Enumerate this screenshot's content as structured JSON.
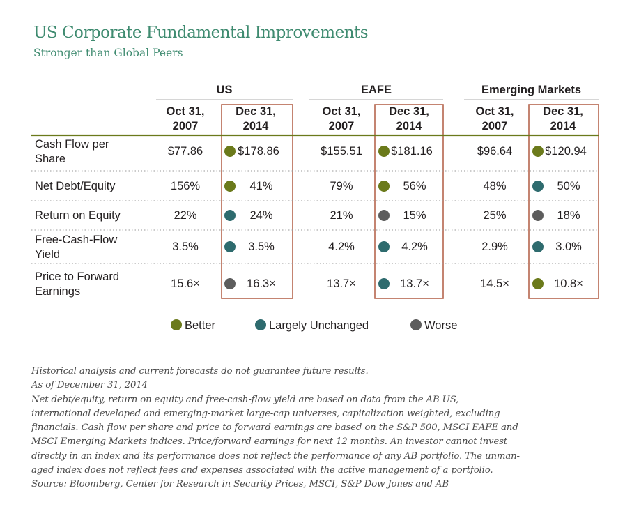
{
  "title": "US Corporate Fundamental Improvements",
  "subtitle": "Stronger than Global Peers",
  "colors": {
    "better": "#6b7a1b",
    "largely_unchanged": "#2e6b6e",
    "worse": "#5d5d5d",
    "title": "#3f8b70",
    "highlight_box": "#b5654e",
    "header_rule": "#6b7a1b"
  },
  "chart_data": {
    "type": "table",
    "groups": [
      {
        "name": "US",
        "columns": [
          "Oct 31, 2007",
          "Dec 31, 2014"
        ]
      },
      {
        "name": "EAFE",
        "columns": [
          "Oct 31, 2007",
          "Dec 31, 2014"
        ]
      },
      {
        "name": "Emerging Markets",
        "columns": [
          "Oct 31, 2007",
          "Dec 31, 2014"
        ]
      }
    ],
    "column_labels": {
      "col_2007": [
        "Oct 31,",
        "2007"
      ],
      "col_2014": [
        "Dec 31,",
        "2014"
      ]
    },
    "rows": [
      {
        "metric": [
          "Cash Flow per",
          "Share"
        ],
        "cells": [
          {
            "v2007": "$77.86",
            "v2014": "$178.86",
            "status": "better"
          },
          {
            "v2007": "$155.51",
            "v2014": "$181.16",
            "status": "better"
          },
          {
            "v2007": "$96.64",
            "v2014": "$120.94",
            "status": "better"
          }
        ]
      },
      {
        "metric": [
          "Net Debt/Equity"
        ],
        "cells": [
          {
            "v2007": "156%",
            "v2014": "41%",
            "status": "better"
          },
          {
            "v2007": "79%",
            "v2014": "56%",
            "status": "better"
          },
          {
            "v2007": "48%",
            "v2014": "50%",
            "status": "largely_unchanged"
          }
        ]
      },
      {
        "metric": [
          "Return on Equity"
        ],
        "cells": [
          {
            "v2007": "22%",
            "v2014": "24%",
            "status": "largely_unchanged"
          },
          {
            "v2007": "21%",
            "v2014": "15%",
            "status": "worse"
          },
          {
            "v2007": "25%",
            "v2014": "18%",
            "status": "worse"
          }
        ]
      },
      {
        "metric": [
          "Free-Cash-Flow",
          "Yield"
        ],
        "cells": [
          {
            "v2007": "3.5%",
            "v2014": "3.5%",
            "status": "largely_unchanged"
          },
          {
            "v2007": "4.2%",
            "v2014": "4.2%",
            "status": "largely_unchanged"
          },
          {
            "v2007": "2.9%",
            "v2014": "3.0%",
            "status": "largely_unchanged"
          }
        ]
      },
      {
        "metric": [
          "Price to Forward",
          "Earnings"
        ],
        "cells": [
          {
            "v2007": "15.6×",
            "v2014": "16.3×",
            "status": "worse"
          },
          {
            "v2007": "13.7×",
            "v2014": "13.7×",
            "status": "largely_unchanged"
          },
          {
            "v2007": "14.5×",
            "v2014": "10.8×",
            "status": "better"
          }
        ]
      }
    ],
    "legend": [
      {
        "key": "better",
        "label": "Better"
      },
      {
        "key": "largely_unchanged",
        "label": "Largely Unchanged"
      },
      {
        "key": "worse",
        "label": "Worse"
      }
    ]
  },
  "notes": [
    "Historical analysis and current forecasts do not guarantee future results.",
    "As of December 31, 2014",
    "Net debt/equity, return on equity and free-cash-flow yield are based on data from the AB US,",
    "international developed and emerging-market large-cap universes, capitalization weighted, excluding",
    "financials. Cash flow per share and price to forward earnings are based on the S&P 500, MSCI EAFE and",
    "MSCI Emerging Markets indices. Price/forward earnings for next 12 months. An investor cannot invest",
    "directly in an index and its performance does not reflect the performance of any AB portfolio. The unman-",
    "aged index does not reflect fees and expenses associated with the active management of a portfolio.",
    "Source: Bloomberg, Center for Research in Security Prices, MSCI, S&P Dow Jones and AB"
  ]
}
